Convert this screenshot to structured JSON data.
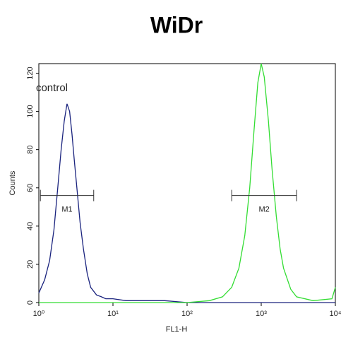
{
  "chart_data": {
    "type": "line",
    "title": "WiDr",
    "x_label": "FL1-H",
    "y_label": "Counts",
    "xscale": "log",
    "xlim": [
      1,
      10000
    ],
    "ylim": [
      0,
      125
    ],
    "xticks": [
      {
        "value": 1,
        "label": "10⁰"
      },
      {
        "value": 10,
        "label": "10¹"
      },
      {
        "value": 100,
        "label": "10²"
      },
      {
        "value": 1000,
        "label": "10³"
      },
      {
        "value": 10000,
        "label": "10⁴"
      }
    ],
    "yticks": [
      0,
      20,
      40,
      60,
      80,
      100,
      120
    ],
    "annotations": [
      {
        "text": "control",
        "x": 1.5,
        "y": 112
      }
    ],
    "gates": [
      {
        "label": "M1",
        "range": [
          1.05,
          5.5
        ],
        "y": 56
      },
      {
        "label": "M2",
        "range": [
          400,
          3000
        ],
        "y": 56
      }
    ],
    "series": [
      {
        "color": "#1a237e",
        "x": [
          1,
          1.2,
          1.4,
          1.6,
          1.8,
          2.0,
          2.2,
          2.4,
          2.6,
          2.8,
          3.0,
          3.3,
          3.6,
          4,
          4.5,
          5,
          6,
          7,
          8,
          10,
          15,
          20,
          50,
          100,
          1000,
          10000
        ],
        "values": [
          5,
          12,
          22,
          38,
          60,
          80,
          95,
          104,
          100,
          88,
          75,
          58,
          42,
          28,
          15,
          8,
          4,
          3,
          2,
          2,
          1,
          1,
          1,
          0,
          0,
          0
        ]
      },
      {
        "color": "#33dd33",
        "x": [
          1,
          100,
          200,
          300,
          400,
          500,
          600,
          700,
          800,
          900,
          1000,
          1100,
          1250,
          1400,
          1600,
          1800,
          2000,
          2500,
          3000,
          5000,
          9000,
          10000
        ],
        "values": [
          0,
          0,
          1,
          3,
          8,
          18,
          35,
          60,
          90,
          115,
          125,
          118,
          95,
          70,
          45,
          28,
          18,
          7,
          3,
          1,
          2,
          8
        ]
      }
    ]
  }
}
